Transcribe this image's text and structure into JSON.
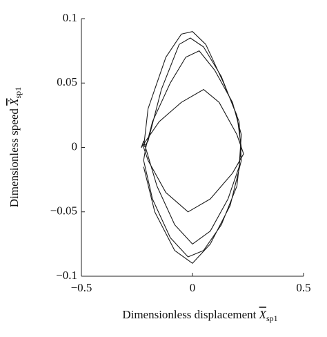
{
  "chart_data": {
    "type": "line",
    "xlabel": "Dimensionless displacement",
    "xlabel_symbol": "X",
    "xlabel_subscript": "sp1",
    "ylabel": "Dimensionless speed",
    "ylabel_symbol": "Ẋ",
    "ylabel_subscript": "sp1",
    "xlim": [
      -0.5,
      0.5
    ],
    "xticks": [
      {
        "value": -0.5,
        "label": "−0.5"
      },
      0,
      0.5
    ],
    "ylim": [
      -0.1,
      0.1
    ],
    "yticks": [
      {
        "value": -0.1,
        "label": "−0.1"
      },
      {
        "value": -0.05,
        "label": "−0.05"
      },
      0,
      0.05,
      0.1
    ],
    "grid": false,
    "series": [
      {
        "color": "#1a1a1a",
        "x": [
          -0.22,
          -0.2,
          -0.12,
          -0.05,
          0.0,
          0.06,
          0.14,
          0.2,
          0.22,
          0.2,
          0.13,
          0.05,
          -0.02,
          -0.1,
          -0.18,
          -0.22,
          -0.21,
          -0.18,
          -0.1,
          -0.03,
          0.03,
          0.1,
          0.18,
          0.22,
          0.21,
          0.16,
          0.08,
          0.0,
          -0.08,
          -0.16,
          -0.22,
          -0.23,
          -0.15,
          -0.05,
          0.05,
          0.12,
          0.2,
          0.23,
          0.18,
          0.08,
          -0.02,
          -0.12,
          -0.2,
          -0.22,
          -0.2,
          -0.14,
          -0.06,
          -0.01,
          0.05,
          0.13,
          0.21,
          0.22,
          0.17,
          0.08,
          0.0,
          -0.08,
          -0.17,
          -0.22
        ],
        "values": [
          0.0,
          0.03,
          0.07,
          0.088,
          0.09,
          0.08,
          0.05,
          0.025,
          0.0,
          -0.03,
          -0.06,
          -0.08,
          -0.085,
          -0.07,
          -0.04,
          -0.01,
          0.0,
          0.02,
          0.05,
          0.07,
          0.075,
          0.06,
          0.035,
          0.01,
          -0.015,
          -0.04,
          -0.065,
          -0.075,
          -0.06,
          -0.03,
          0.005,
          0.0,
          0.02,
          0.035,
          0.045,
          0.035,
          0.01,
          -0.005,
          -0.02,
          -0.04,
          -0.05,
          -0.035,
          -0.01,
          0.0,
          0.005,
          0.045,
          0.08,
          0.085,
          0.078,
          0.055,
          0.02,
          -0.01,
          -0.045,
          -0.075,
          -0.09,
          -0.08,
          -0.05,
          -0.015
        ]
      }
    ]
  }
}
